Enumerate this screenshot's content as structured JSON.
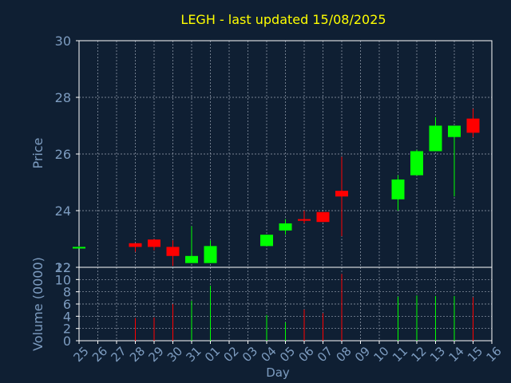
{
  "colors": {
    "background": "#0f1f33",
    "title": "#ffff00",
    "axis_text": "#7d9cc0",
    "frame": "#ffffff",
    "grid": "#9aa3b3",
    "up": "#00ff00",
    "down": "#ff0000"
  },
  "chart_data": {
    "type": "candlestick",
    "title": "LEGH - last updated 15/08/2025",
    "xlabel": "Day",
    "price_panel": {
      "ylabel": "Price",
      "ylim": [
        22,
        30
      ],
      "yticks": [
        "22",
        "24",
        "26",
        "28",
        "30"
      ],
      "grid": true
    },
    "volume_panel": {
      "ylabel": "Volume (0000)",
      "ylim": [
        0,
        12
      ],
      "yticks": [
        "0",
        "2",
        "4",
        "6",
        "8",
        "10",
        "12"
      ],
      "grid": true
    },
    "x_tick_labels": [
      "25",
      "26",
      "27",
      "28",
      "29",
      "30",
      "31",
      "01",
      "02",
      "03",
      "04",
      "05",
      "06",
      "07",
      "08",
      "09",
      "10",
      "11",
      "12",
      "13",
      "14",
      "15",
      "16"
    ],
    "candles": [
      {
        "day": "25",
        "open": 22.7,
        "close": 22.72,
        "high": 22.75,
        "low": 22.68,
        "volume": 0.0,
        "direction": "up"
      },
      {
        "day": "28",
        "open": 22.85,
        "close": 22.72,
        "high": 22.85,
        "low": 22.55,
        "volume": 3.7,
        "direction": "down"
      },
      {
        "day": "29",
        "open": 22.98,
        "close": 22.72,
        "high": 23.0,
        "low": 22.6,
        "volume": 3.8,
        "direction": "down"
      },
      {
        "day": "30",
        "open": 22.72,
        "close": 22.4,
        "high": 22.95,
        "low": 22.05,
        "volume": 6.0,
        "direction": "down"
      },
      {
        "day": "31",
        "open": 22.15,
        "close": 22.4,
        "high": 23.45,
        "low": 22.15,
        "volume": 6.5,
        "direction": "up"
      },
      {
        "day": "01",
        "open": 22.15,
        "close": 22.75,
        "high": 22.95,
        "low": 22.15,
        "volume": 9.0,
        "direction": "up"
      },
      {
        "day": "04",
        "open": 22.75,
        "close": 23.15,
        "high": 23.15,
        "low": 22.75,
        "volume": 4.2,
        "direction": "up"
      },
      {
        "day": "05",
        "open": 23.3,
        "close": 23.55,
        "high": 23.7,
        "low": 23.15,
        "volume": 3.0,
        "direction": "up"
      },
      {
        "day": "06",
        "open": 23.7,
        "close": 23.65,
        "high": 24.0,
        "low": 23.55,
        "volume": 5.1,
        "direction": "down"
      },
      {
        "day": "07",
        "open": 23.95,
        "close": 23.6,
        "high": 23.95,
        "low": 23.6,
        "volume": 4.5,
        "direction": "down"
      },
      {
        "day": "08",
        "open": 24.7,
        "close": 24.5,
        "high": 25.9,
        "low": 23.1,
        "volume": 10.9,
        "direction": "down"
      },
      {
        "day": "11",
        "open": 24.4,
        "close": 25.1,
        "high": 25.25,
        "low": 24.0,
        "volume": 7.2,
        "direction": "up"
      },
      {
        "day": "12",
        "open": 25.25,
        "close": 26.1,
        "high": 26.15,
        "low": 25.25,
        "volume": 7.4,
        "direction": "up"
      },
      {
        "day": "13",
        "open": 26.1,
        "close": 27.0,
        "high": 27.3,
        "low": 26.1,
        "volume": 7.3,
        "direction": "up"
      },
      {
        "day": "14",
        "open": 26.6,
        "close": 27.0,
        "high": 27.0,
        "low": 24.5,
        "volume": 7.3,
        "direction": "up"
      },
      {
        "day": "15",
        "open": 27.25,
        "close": 26.75,
        "high": 27.6,
        "low": 26.6,
        "volume": 7.1,
        "direction": "down"
      }
    ]
  }
}
